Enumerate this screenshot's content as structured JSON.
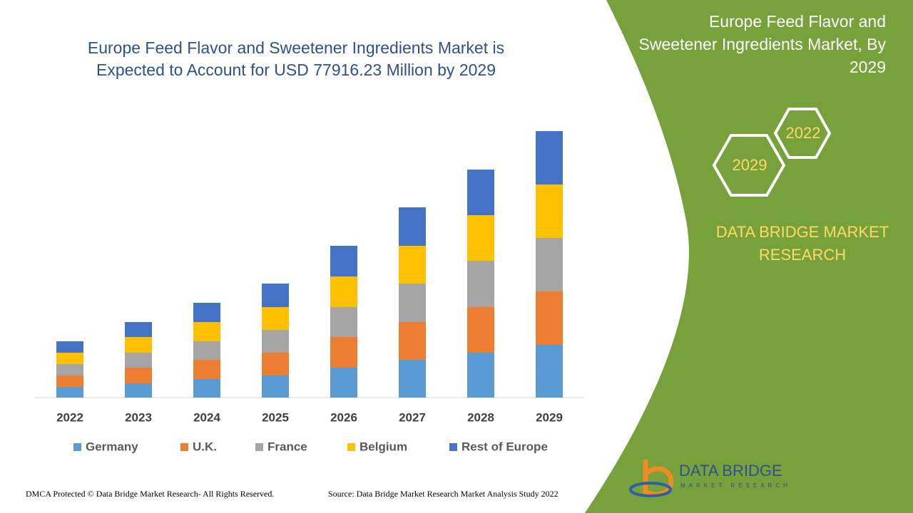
{
  "chart_data": {
    "type": "stacked_bar",
    "title": "Europe Feed Flavor and Sweetener Ingredients Market is Expected to Account for USD 77916.23 Million by 2029",
    "categories": [
      "2022",
      "2023",
      "2024",
      "2025",
      "2026",
      "2027",
      "2028",
      "2029"
    ],
    "series": [
      {
        "name": "Germany",
        "color": "#5b9bd5",
        "values": [
          15,
          20,
          26,
          31,
          42,
          53,
          63,
          74
        ]
      },
      {
        "name": "U.K.",
        "color": "#ed7d31",
        "values": [
          16,
          22,
          27,
          32,
          43,
          53,
          64,
          75
        ]
      },
      {
        "name": "France",
        "color": "#a5a5a5",
        "values": [
          16,
          21,
          26,
          32,
          42,
          54,
          65,
          75
        ]
      },
      {
        "name": "Belgium",
        "color": "#ffc000",
        "values": [
          16,
          22,
          27,
          32,
          43,
          53,
          64,
          75
        ]
      },
      {
        "name": "Rest of Europe",
        "color": "#4472c4",
        "values": [
          16,
          21,
          27,
          33,
          43,
          54,
          64,
          75
        ]
      }
    ]
  },
  "side_panel": {
    "title": "Europe Feed Flavor and Sweetener Ingredients Market, By 2029",
    "hex_years": [
      "2022",
      "2029"
    ],
    "brand": "DATA BRIDGE MARKET RESEARCH",
    "logo_name": "DATA BRIDGE",
    "logo_tagline": "MARKET RESEARCH"
  },
  "footer": {
    "copyright": "DMCA Protected © Data Bridge Market Research- All Rights Reserved.",
    "source": "Source: Data Bridge Market Research Market Analysis Study 2022"
  }
}
